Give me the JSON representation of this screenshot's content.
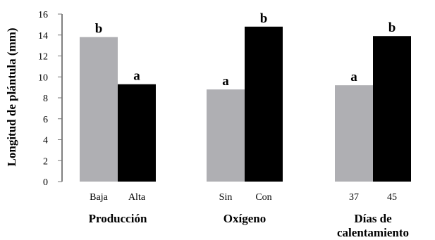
{
  "chart_data": {
    "type": "bar",
    "ylabel": "Longitud de plántula (mm)",
    "ylim": [
      0,
      16
    ],
    "yticks": [
      "0",
      "2",
      "4",
      "6",
      "8",
      "10",
      "12",
      "14",
      "16"
    ],
    "grid": false,
    "legend": "none",
    "colors": {
      "light": "#afafb3",
      "dark": "#000000"
    },
    "groups": [
      {
        "name": "Producción",
        "bars": [
          {
            "label": "Baja",
            "value": 13.8,
            "sig": "b",
            "color": "light"
          },
          {
            "label": "Alta",
            "value": 9.3,
            "sig": "a",
            "color": "dark"
          }
        ]
      },
      {
        "name": "Oxígeno",
        "bars": [
          {
            "label": "Sin",
            "value": 8.8,
            "sig": "a",
            "color": "light"
          },
          {
            "label": "Con",
            "value": 14.8,
            "sig": "b",
            "color": "dark"
          }
        ]
      },
      {
        "name": "Días de calentamiento",
        "name_lines": [
          "Días de",
          "calentamiento"
        ],
        "bars": [
          {
            "label": "37",
            "value": 9.2,
            "sig": "a",
            "color": "light"
          },
          {
            "label": "45",
            "value": 13.9,
            "sig": "b",
            "color": "dark"
          }
        ]
      }
    ]
  }
}
